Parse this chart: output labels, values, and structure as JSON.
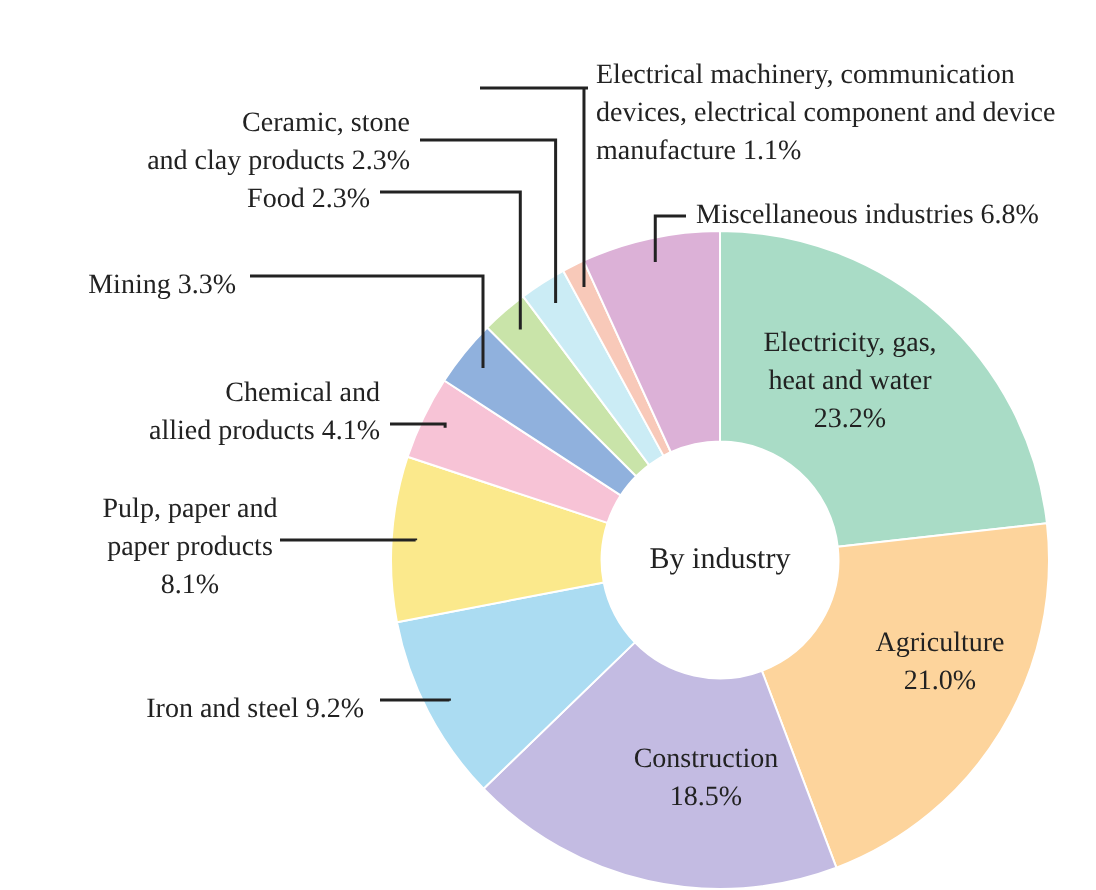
{
  "chart_data": {
    "type": "donut",
    "categories": [
      "Electricity, gas, heat and water",
      "Agriculture",
      "Construction",
      "Iron and steel",
      "Pulp, paper and paper products",
      "Chemical and allied products",
      "Mining",
      "Food",
      "Ceramic, stone and clay products",
      "Electrical machinery, communication devices, electrical component and device manufacture",
      "Miscellaneous industries"
    ],
    "values": [
      23.2,
      21.0,
      18.5,
      9.2,
      8.1,
      4.1,
      3.3,
      2.3,
      2.3,
      1.1,
      6.8
    ],
    "value_labels": [
      "23.2%",
      "21.0%",
      "18.5%",
      "9.2%",
      "8.1%",
      "4.1%",
      "3.3%",
      "2.3%",
      "2.3%",
      "1.1%",
      "6.8%"
    ],
    "colors": [
      "#a9dcc6",
      "#fdd49c",
      "#c3bbe2",
      "#abdcf2",
      "#fbe98c",
      "#f7c3d6",
      "#90b1dd",
      "#c9e4a9",
      "#cbecf5",
      "#f8c9b9",
      "#dcb1d7"
    ],
    "annotations": [
      "By industry"
    ],
    "legend": false
  }
}
